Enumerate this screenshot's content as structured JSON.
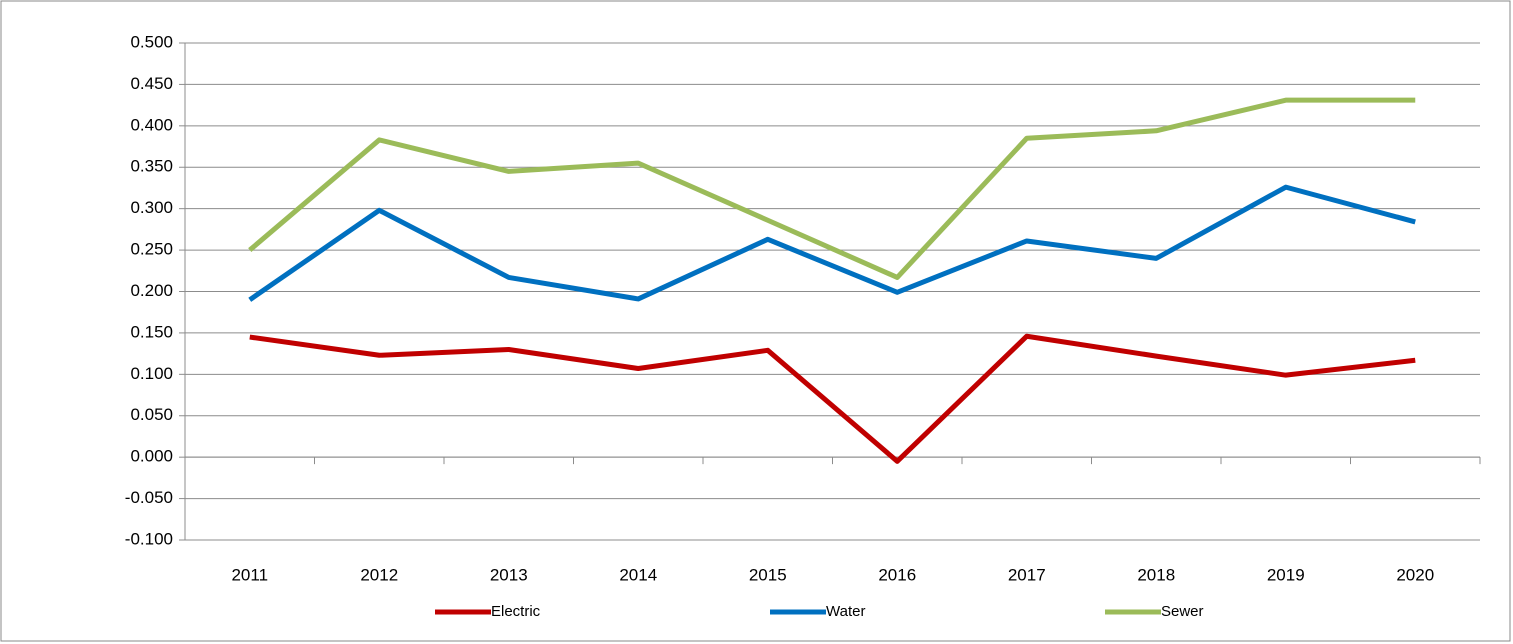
{
  "chart_data": {
    "type": "line",
    "categories": [
      "2011",
      "2012",
      "2013",
      "2014",
      "2015",
      "2016",
      "2017",
      "2018",
      "2019",
      "2020"
    ],
    "series": [
      {
        "name": "Electric",
        "color": "#c00000",
        "values": [
          0.145,
          0.123,
          0.13,
          0.107,
          0.129,
          -0.005,
          0.146,
          0.122,
          0.099,
          0.117
        ]
      },
      {
        "name": "Water",
        "color": "#0070c0",
        "values": [
          0.19,
          0.298,
          0.217,
          0.191,
          0.263,
          0.199,
          0.261,
          0.24,
          0.326,
          0.284
        ]
      },
      {
        "name": "Sewer",
        "color": "#9bbb59",
        "values": [
          0.25,
          0.383,
          0.345,
          0.355,
          0.286,
          0.217,
          0.385,
          0.394,
          0.431,
          0.431
        ]
      }
    ],
    "ylim": [
      -0.1,
      0.5
    ],
    "yticks": [
      {
        "value": -0.1,
        "label": "-0.100"
      },
      {
        "value": -0.05,
        "label": "-0.050"
      },
      {
        "value": 0,
        "label": "0.000"
      },
      {
        "value": 0.05,
        "label": "0.050"
      },
      {
        "value": 0.1,
        "label": "0.100"
      },
      {
        "value": 0.15,
        "label": "0.150"
      },
      {
        "value": 0.2,
        "label": "0.200"
      },
      {
        "value": 0.25,
        "label": "0.250"
      },
      {
        "value": 0.3,
        "label": "0.300"
      },
      {
        "value": 0.35,
        "label": "0.350"
      },
      {
        "value": 0.4,
        "label": "0.400"
      },
      {
        "value": 0.45,
        "label": "0.450"
      },
      {
        "value": 0.5,
        "label": "0.500"
      }
    ],
    "grid": true,
    "legend": "bottom"
  }
}
